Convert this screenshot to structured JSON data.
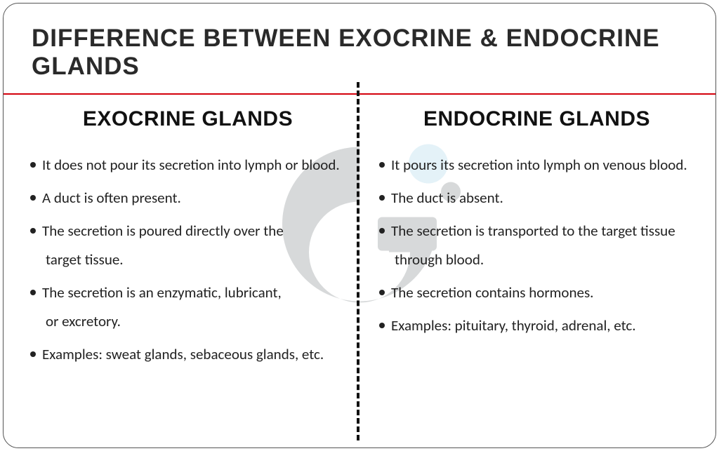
{
  "title": "DIFFERENCE BETWEEN EXOCRINE & ENDOCRINE GLANDS",
  "divider_color": "#d3000c",
  "left": {
    "heading": "EXOCRINE GLANDS",
    "bullets": [
      {
        "l1": "It does not pour its secretion into lymph or blood."
      },
      {
        "l1": "A duct is often present."
      },
      {
        "l1": "The secretion is poured directly over the",
        "l2": "target tissue."
      },
      {
        "l1": "The secretion is an enzymatic, lubricant,",
        "l2": "or excretory."
      },
      {
        "l1": "Examples: sweat glands, sebaceous glands, etc."
      }
    ]
  },
  "right": {
    "heading": "ENDOCRINE GLANDS",
    "bullets": [
      {
        "l1": "It pours its secretion into lymph on venous blood."
      },
      {
        "l1": "The duct is absent."
      },
      {
        "l1": "The secretion is transported to the target tissue",
        "l2": "through blood."
      },
      {
        "l1": "The secretion contains hormones."
      },
      {
        "l1": "Examples: pituitary, thyroid, adrenal, etc."
      }
    ]
  },
  "watermark": {
    "main_color": "#d7d9da",
    "dot_color": "#e4f2f8",
    "dot2_color": "#d7d9da"
  }
}
